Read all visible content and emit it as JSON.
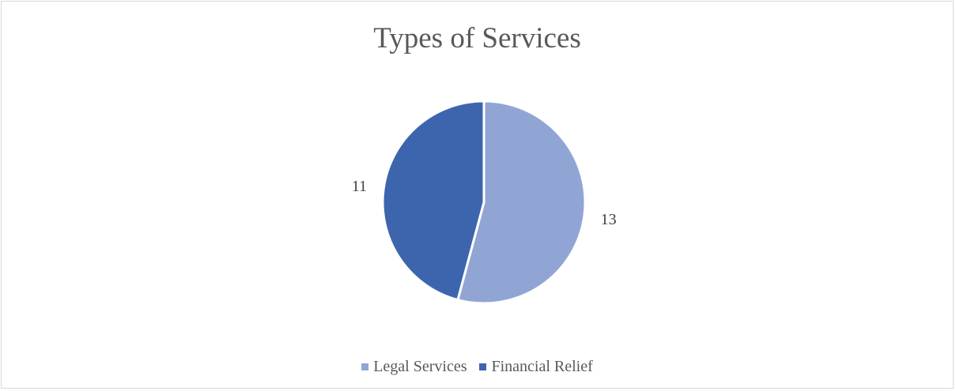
{
  "chart_data": {
    "type": "pie",
    "title": "Types of Services",
    "categories": [
      "Legal Services",
      "Financial Relief"
    ],
    "values": [
      13,
      11
    ],
    "colors": [
      "#91a5d5",
      "#3d65ae"
    ],
    "data_labels": [
      "13",
      "11"
    ],
    "legend_position": "bottom"
  }
}
